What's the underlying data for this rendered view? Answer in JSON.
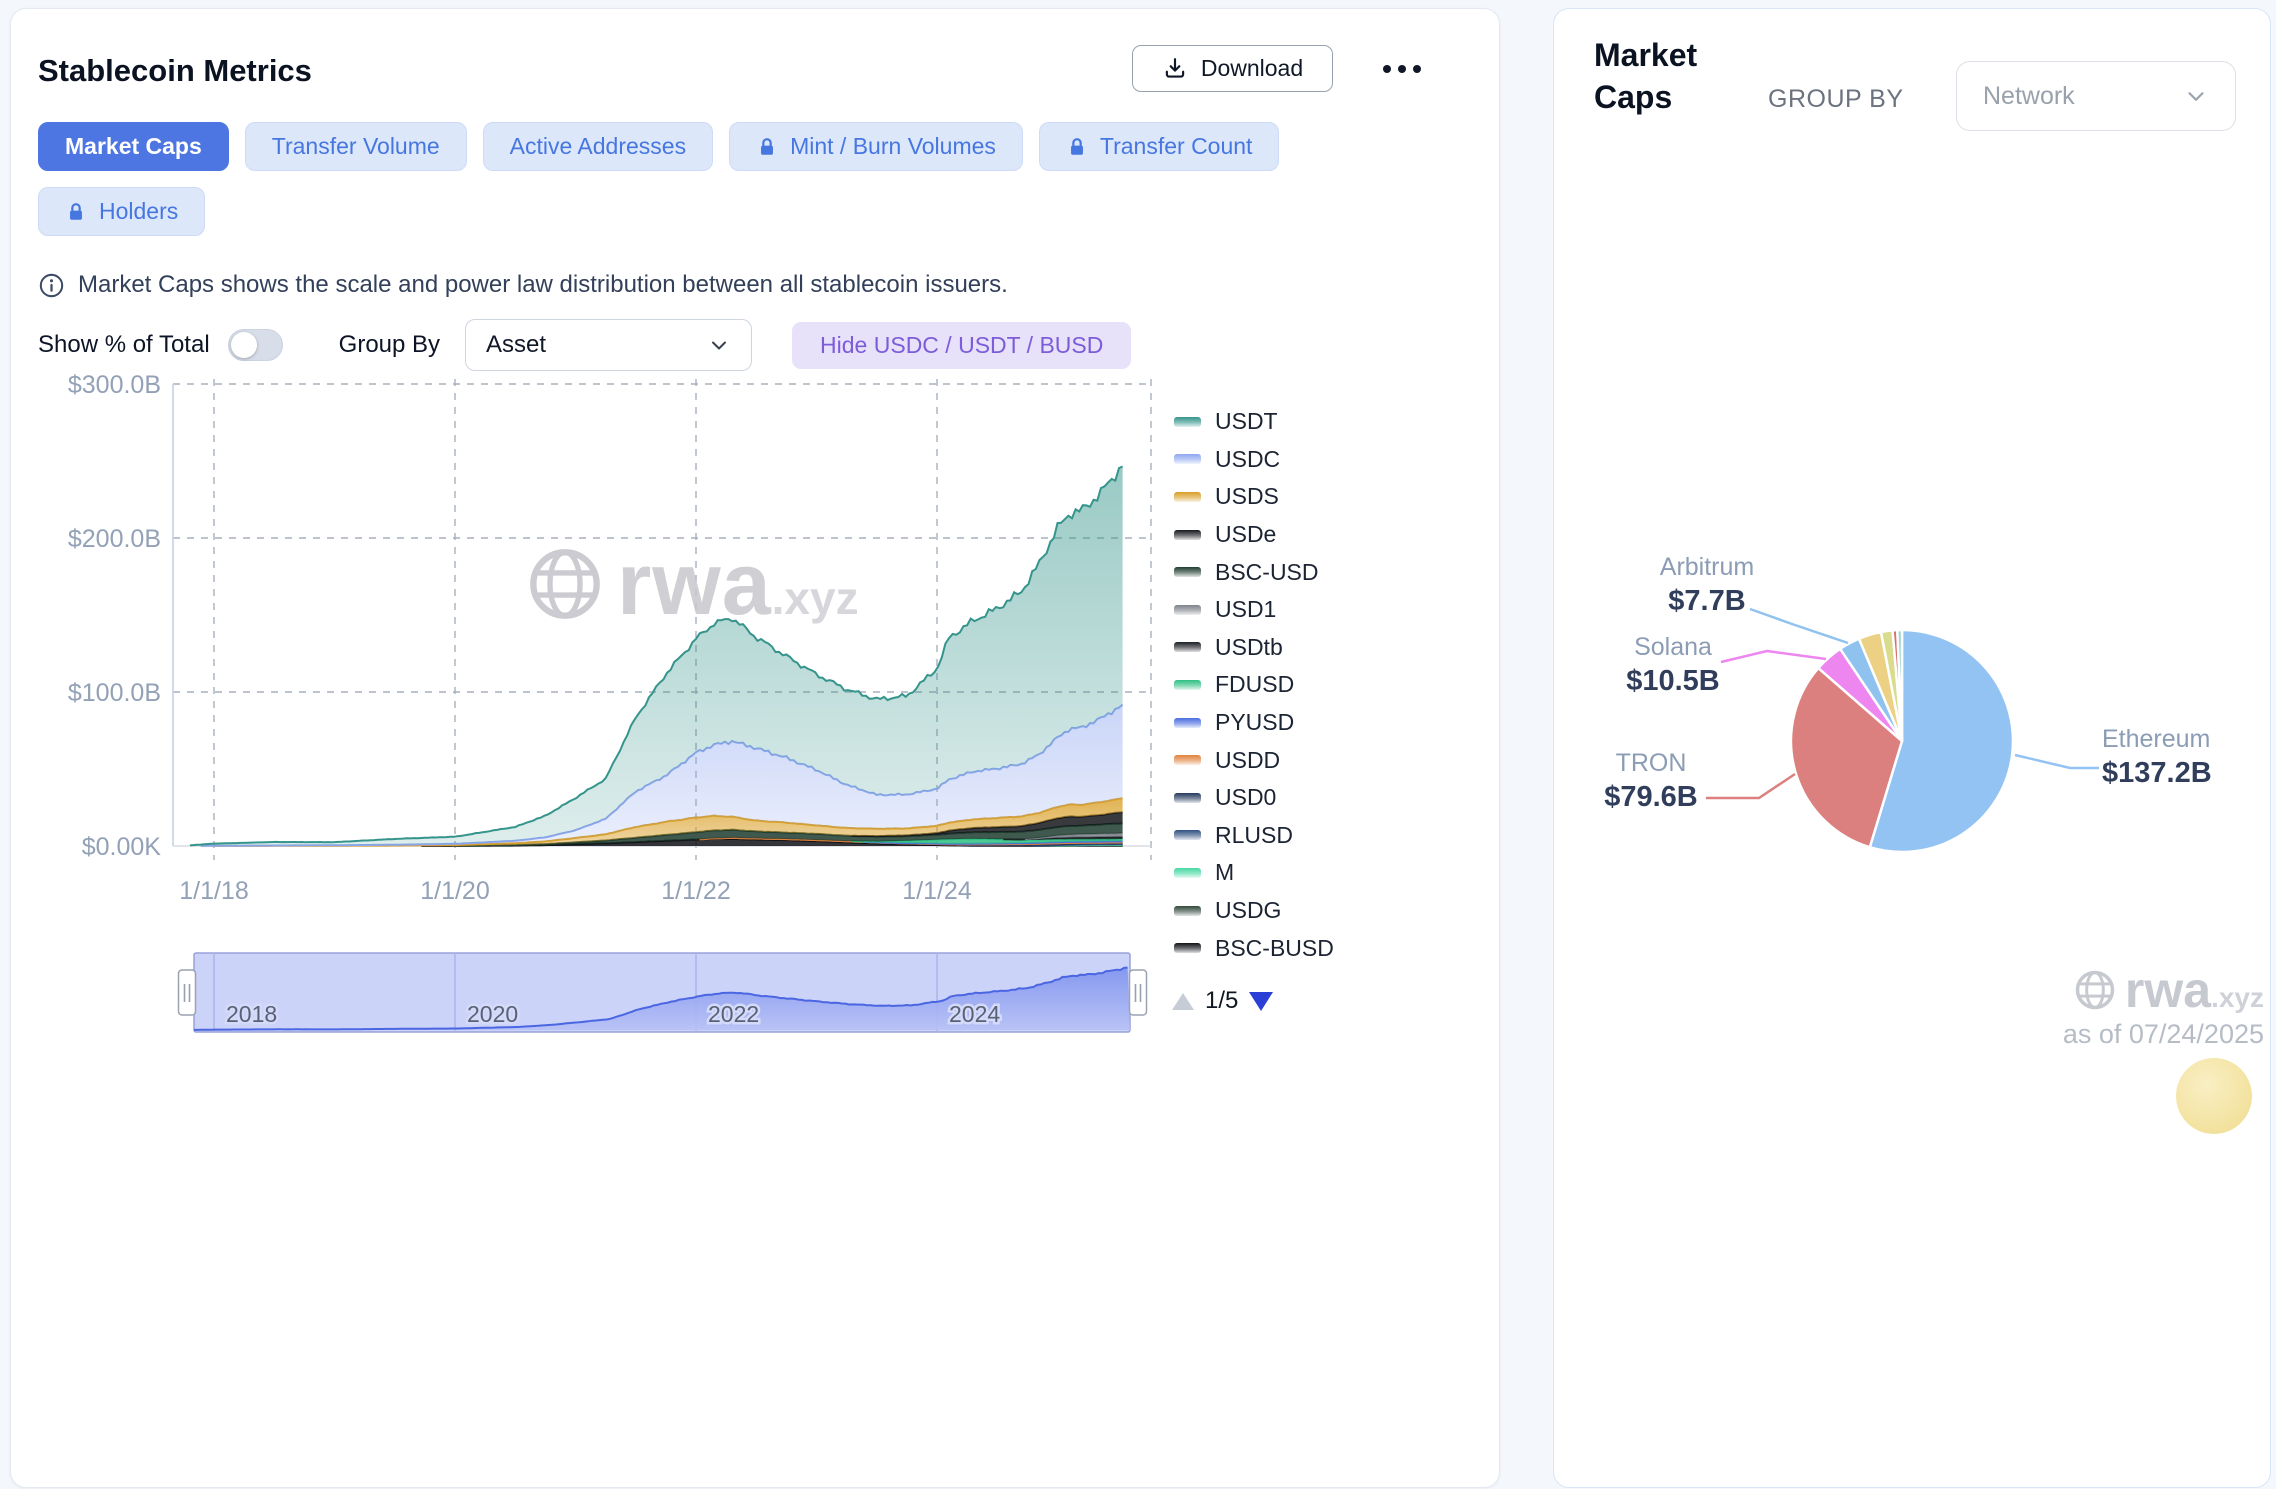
{
  "left_panel": {
    "title": "Stablecoin Metrics",
    "download_label": "Download",
    "tabs": [
      {
        "label": "Market Caps",
        "active": true,
        "locked": false
      },
      {
        "label": "Transfer Volume",
        "active": false,
        "locked": false
      },
      {
        "label": "Active Addresses",
        "active": false,
        "locked": false
      },
      {
        "label": "Mint / Burn Volumes",
        "active": false,
        "locked": true
      },
      {
        "label": "Transfer Count",
        "active": false,
        "locked": true
      },
      {
        "label": "Holders",
        "active": false,
        "locked": true
      }
    ],
    "info_text": "Market Caps shows the scale and power law distribution between all stablecoin issuers.",
    "controls": {
      "show_pct_label": "Show % of Total",
      "toggle_on": false,
      "group_by_label": "Group By",
      "group_by_value": "Asset",
      "hide_button_label": "Hide USDC / USDT / BUSD"
    },
    "legend_page": "1/5",
    "watermark": {
      "brand": "rwa",
      "suffix": ".xyz"
    }
  },
  "right_panel": {
    "title": "Market Caps",
    "group_by_label": "GROUP BY",
    "group_by_value": "Network",
    "watermark": {
      "brand": "rwa",
      "suffix": ".xyz"
    },
    "as_of": "as of 07/24/2025"
  },
  "chart_data": [
    {
      "id": "stablecoin_marketcaps",
      "type": "area",
      "stacked": true,
      "unit": "$B",
      "y_ticks": [
        {
          "label": "$300.0B",
          "value": 300
        },
        {
          "label": "$200.0B",
          "value": 200
        },
        {
          "label": "$100.0B",
          "value": 100
        },
        {
          "label": "$0.00K",
          "value": 0
        }
      ],
      "x_ticks": [
        {
          "label": "1/1/18",
          "year": 2018
        },
        {
          "label": "1/1/20",
          "year": 2020
        },
        {
          "label": "1/1/22",
          "year": 2022
        },
        {
          "label": "1/1/24",
          "year": 2024
        }
      ],
      "x_range": [
        2017.8,
        2025.56
      ],
      "y_range": [
        0,
        300
      ],
      "x": [
        2017.8,
        2018,
        2018.5,
        2019,
        2019.5,
        2020,
        2020.5,
        2020.75,
        2021,
        2021.25,
        2021.5,
        2021.75,
        2022,
        2022.15,
        2022.3,
        2022.5,
        2022.75,
        2023,
        2023.25,
        2023.5,
        2023.75,
        2024,
        2024.1,
        2024.3,
        2024.5,
        2024.7,
        2024.85,
        2025,
        2025.1,
        2025.2,
        2025.35,
        2025.56
      ],
      "series": [
        {
          "name": "USDT",
          "color": "#35948b",
          "values": [
            0.4,
            1.4,
            2.3,
            2.0,
            3.8,
            4.6,
            9,
            14,
            21,
            26,
            48,
            66,
            74,
            79,
            80,
            72,
            66,
            62,
            62,
            62,
            64,
            78,
            92,
            98,
            104,
            112,
            124,
            136,
            140,
            141,
            146,
            157
          ]
        },
        {
          "name": "USDC",
          "color": "#8fa7f0",
          "values": [
            0,
            0.1,
            0.2,
            0.3,
            0.5,
            0.8,
            1.6,
            2.6,
            5,
            10,
            23,
            30,
            42,
            46,
            49,
            47,
            42,
            36,
            28,
            22,
            22,
            24,
            28,
            31,
            32,
            34,
            38,
            45,
            49,
            50,
            54,
            61
          ]
        },
        {
          "name": "USDS",
          "color": "#d99f27",
          "values": [
            0,
            0.05,
            0.1,
            0.2,
            0.3,
            0.5,
            1.2,
            1.8,
            2.8,
            4,
            7,
            8.5,
            9.5,
            9.5,
            8.5,
            7,
            6.5,
            5.5,
            5,
            4.8,
            4.5,
            4.8,
            5.2,
            5.6,
            6,
            6.3,
            6.5,
            7.3,
            7.8,
            7.8,
            8.3,
            9
          ]
        },
        {
          "name": "USDe",
          "color": "#15181c",
          "values": [
            0,
            0,
            0,
            0,
            0,
            0,
            0,
            0,
            0,
            0,
            0,
            0,
            0,
            0,
            0,
            0,
            0,
            0,
            0,
            0.3,
            0.5,
            1,
            2,
            2.8,
            3.2,
            3.6,
            4.6,
            5.8,
            6.2,
            5.8,
            6.2,
            7.5
          ]
        },
        {
          "name": "BSC-USD",
          "color": "#1f3c2f",
          "values": [
            0,
            0,
            0,
            0,
            0,
            0,
            0.3,
            0.6,
            1.2,
            1.8,
            2.8,
            3.8,
            4.8,
            5.2,
            5.2,
            4.6,
            4.2,
            4,
            3.6,
            3.2,
            3,
            3.2,
            3.6,
            4.2,
            4.6,
            5,
            5.2,
            5.5,
            5.6,
            5.6,
            6,
            6.5
          ]
        },
        {
          "name": "USD1",
          "color": "#7d828a",
          "values": [
            0,
            0,
            0,
            0,
            0,
            0,
            0,
            0,
            0,
            0,
            0,
            0,
            0,
            0,
            0,
            0,
            0,
            0,
            0,
            0,
            0,
            0,
            0,
            0,
            0,
            0,
            0.5,
            1.5,
            1.8,
            1.9,
            2.1,
            2.2
          ]
        },
        {
          "name": "USDtb",
          "color": "#1b1e24",
          "values": [
            0,
            0,
            0,
            0,
            0,
            0,
            0,
            0,
            0,
            0,
            0,
            0,
            0,
            0,
            0,
            0,
            0,
            0,
            0,
            0,
            0,
            0,
            0,
            0,
            0,
            0.3,
            0.6,
            1.0,
            1.2,
            1.3,
            1.4,
            1.5
          ]
        },
        {
          "name": "FDUSD",
          "color": "#2fbf82",
          "values": [
            0,
            0,
            0,
            0,
            0,
            0,
            0,
            0,
            0,
            0,
            0,
            0,
            0,
            0,
            0,
            0,
            0,
            0,
            0,
            0.5,
            1.5,
            2.5,
            3,
            3.2,
            2.8,
            2.2,
            2,
            1.8,
            1.6,
            1.5,
            1.4,
            1.3
          ]
        },
        {
          "name": "PYUSD",
          "color": "#4a6de0",
          "values": [
            0,
            0,
            0,
            0,
            0,
            0,
            0,
            0,
            0,
            0,
            0,
            0,
            0,
            0,
            0,
            0,
            0,
            0,
            0,
            0.1,
            0.2,
            0.3,
            0.3,
            0.4,
            0.4,
            0.5,
            0.6,
            0.7,
            0.75,
            0.8,
            0.85,
            0.9
          ]
        },
        {
          "name": "USDD",
          "color": "#e2813c",
          "values": [
            0,
            0,
            0,
            0,
            0,
            0,
            0,
            0,
            0,
            0,
            0,
            0,
            0,
            0.3,
            0.7,
            0.7,
            0.7,
            0.7,
            0.7,
            0.7,
            0.7,
            0.7,
            0.7,
            0.7,
            0.7,
            0.7,
            0.7,
            0.6,
            0.6,
            0.55,
            0.5,
            0.5
          ]
        },
        {
          "name": "USD0",
          "color": "#25395e",
          "values": [
            0,
            0,
            0,
            0,
            0,
            0,
            0,
            0,
            0,
            0,
            0,
            0,
            0,
            0,
            0,
            0,
            0,
            0,
            0,
            0,
            0,
            0,
            0,
            0.2,
            0.4,
            0.5,
            0.55,
            0.6,
            0.6,
            0.6,
            0.6,
            0.6
          ]
        },
        {
          "name": "RLUSD",
          "color": "#2f4f80",
          "values": [
            0,
            0,
            0,
            0,
            0,
            0,
            0,
            0,
            0,
            0,
            0,
            0,
            0,
            0,
            0,
            0,
            0,
            0,
            0,
            0,
            0,
            0,
            0,
            0,
            0,
            0,
            0.1,
            0.2,
            0.3,
            0.35,
            0.4,
            0.5
          ]
        },
        {
          "name": "M",
          "color": "#47d9a4",
          "values": [
            0,
            0,
            0,
            0,
            0,
            0,
            0,
            0,
            0,
            0,
            0,
            0,
            0,
            0,
            0,
            0,
            0,
            0,
            0,
            0,
            0,
            0,
            0,
            0,
            0,
            0,
            0,
            0.1,
            0.15,
            0.2,
            0.22,
            0.25
          ]
        },
        {
          "name": "USDG",
          "color": "#33493c",
          "values": [
            0,
            0,
            0,
            0,
            0,
            0,
            0,
            0,
            0,
            0,
            0,
            0,
            0,
            0,
            0,
            0,
            0,
            0,
            0,
            0,
            0,
            0,
            0,
            0,
            0,
            0,
            0.1,
            0.2,
            0.25,
            0.3,
            0.35,
            0.4
          ]
        },
        {
          "name": "BSC-BUSD",
          "color": "#101216",
          "values": [
            0,
            0,
            0,
            0,
            0,
            0.1,
            0.3,
            0.6,
            1.2,
            1.8,
            2.6,
            3.4,
            4.2,
            4.6,
            4.6,
            4.2,
            3.8,
            3.2,
            2.4,
            1.6,
            1.0,
            0.6,
            0.4,
            0.2,
            0.15,
            0.1,
            0.1,
            0.1,
            0.1,
            0.1,
            0.1,
            0.1
          ]
        }
      ]
    },
    {
      "id": "navigator",
      "type": "area",
      "note": "range selector showing total of all stacked series",
      "x_ticks": [
        {
          "label": "2018",
          "year": 2018
        },
        {
          "label": "2020",
          "year": 2020
        },
        {
          "label": "2022",
          "year": 2022
        },
        {
          "label": "2024",
          "year": 2024
        }
      ]
    },
    {
      "id": "marketcap_by_network_pie",
      "type": "pie",
      "title": "Market Caps",
      "group_by": "Network",
      "slices": [
        {
          "label": "Ethereum",
          "value": 137.2,
          "display": "$137.2B",
          "color": "#93c3f2"
        },
        {
          "label": "TRON",
          "value": 79.6,
          "display": "$79.6B",
          "color": "#db807e"
        },
        {
          "label": "Solana",
          "value": 10.5,
          "display": "$10.5B",
          "color": "#ee86f0"
        },
        {
          "label": "Arbitrum",
          "value": 7.7,
          "display": "$7.7B",
          "color": "#90c2f0"
        },
        {
          "label": "",
          "value": 8.3,
          "display": "",
          "color": "#ecd184"
        },
        {
          "label": "",
          "value": 4.2,
          "display": "",
          "color": "#d9dc8c"
        },
        {
          "label": "",
          "value": 1.7,
          "display": "",
          "color": "#da6f6c"
        },
        {
          "label": "",
          "value": 1.7,
          "display": "",
          "color": "#96d9cd"
        }
      ]
    }
  ]
}
